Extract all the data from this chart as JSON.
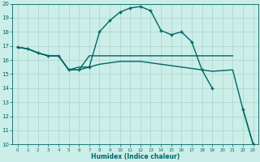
{
  "xlabel": "Humidex (Indice chaleur)",
  "bg_color": "#cceee8",
  "grid_color": "#aad4cc",
  "line_color": "#006666",
  "xlim": [
    -0.5,
    23.5
  ],
  "ylim": [
    10,
    20
  ],
  "xticks": [
    0,
    1,
    2,
    3,
    4,
    5,
    6,
    7,
    8,
    9,
    10,
    11,
    12,
    13,
    14,
    15,
    16,
    17,
    18,
    19,
    20,
    21,
    22,
    23
  ],
  "yticks": [
    10,
    11,
    12,
    13,
    14,
    15,
    16,
    17,
    18,
    19,
    20
  ],
  "lines": [
    {
      "x": [
        0,
        1,
        2,
        3,
        4,
        5,
        6,
        7,
        8,
        9,
        10,
        11,
        12,
        13,
        14,
        15,
        16,
        17,
        18,
        19,
        20,
        21,
        22,
        23
      ],
      "y": [
        16.9,
        16.8,
        16.5,
        16.3,
        16.3,
        15.3,
        15.3,
        15.5,
        18.0,
        18.8,
        19.4,
        19.7,
        19.8,
        19.5,
        18.1,
        17.8,
        18.0,
        17.3,
        15.3,
        14.0,
        null,
        null,
        12.5,
        10.0
      ],
      "marker": true,
      "lw": 1.0
    },
    {
      "x": [
        0,
        1,
        2,
        3,
        4,
        5,
        6,
        7,
        8,
        9,
        10,
        11,
        12,
        13,
        14,
        15,
        16,
        17,
        18,
        19,
        20,
        21
      ],
      "y": [
        16.9,
        16.8,
        16.5,
        16.3,
        16.3,
        15.3,
        15.3,
        16.3,
        16.3,
        16.3,
        16.3,
        16.3,
        16.3,
        16.3,
        16.3,
        16.3,
        16.3,
        16.3,
        16.3,
        16.3,
        16.3,
        16.3
      ],
      "marker": false,
      "lw": 1.0
    },
    {
      "x": [
        0,
        1,
        2,
        3,
        4,
        5,
        6,
        7,
        8,
        9,
        10,
        11,
        12,
        13,
        14,
        15,
        16,
        17,
        18,
        19,
        21,
        22,
        23
      ],
      "y": [
        16.9,
        16.8,
        16.5,
        16.3,
        16.3,
        15.3,
        15.5,
        15.5,
        15.7,
        15.8,
        15.9,
        15.9,
        15.9,
        15.8,
        15.7,
        15.6,
        15.5,
        15.4,
        15.3,
        15.2,
        15.3,
        12.5,
        10.0
      ],
      "marker": false,
      "lw": 1.0
    }
  ]
}
